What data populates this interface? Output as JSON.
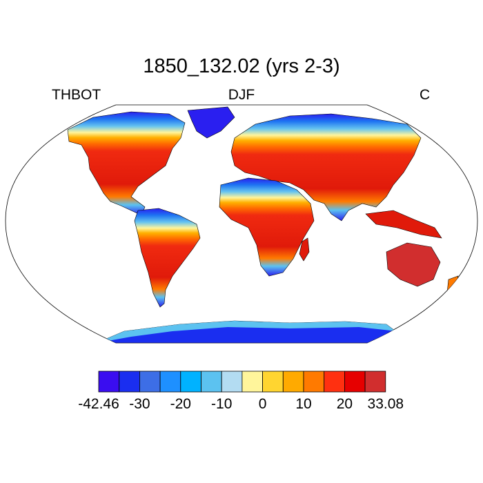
{
  "title": "1850_132.02 (yrs 2-3)",
  "left_label": "THBOT",
  "center_label": "DJF",
  "right_label": "C",
  "map": {
    "projection": "robinson",
    "land_fill": "#d9302a",
    "ocean_fill": "#ffffff",
    "coastline_color": "#000000"
  },
  "colorbar": {
    "colors": [
      "#3a0df0",
      "#1a2ef0",
      "#3d6ee6",
      "#1e90ff",
      "#00b2ff",
      "#5cc2f0",
      "#b3dcf2",
      "#fff59b",
      "#ffd530",
      "#ffaa00",
      "#ff7a00",
      "#ff3010",
      "#e60000",
      "#d12e2e"
    ],
    "tick_labels": [
      "-42.46",
      "-30",
      "-20",
      "-10",
      "0",
      "10",
      "20",
      "33.08"
    ]
  }
}
